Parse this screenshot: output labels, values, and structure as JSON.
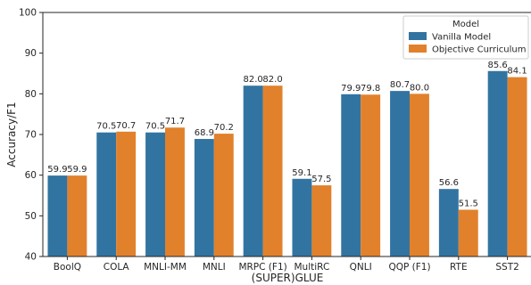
{
  "chart_data": {
    "type": "bar",
    "xlabel": "(SUPER)GLUE",
    "ylabel": "Accuracy/F1",
    "ylim": [
      40,
      100
    ],
    "yticks": [
      40,
      50,
      60,
      70,
      80,
      90,
      100
    ],
    "grid": false,
    "legend": {
      "title": "Model",
      "placement": "top-right"
    },
    "categories": [
      "BoolQ",
      "COLA",
      "MNLI-MM",
      "MNLI",
      "MRPC (F1)",
      "MultiRC",
      "QNLI",
      "QQP (F1)",
      "RTE",
      "SST2"
    ],
    "series": [
      {
        "name": "Vanilla Model",
        "color": "#3274a1",
        "values": [
          59.9,
          70.5,
          70.5,
          68.9,
          82.0,
          59.1,
          79.9,
          80.7,
          56.6,
          85.6
        ],
        "labels": [
          "59.9",
          "70.5",
          "70.5",
          "68.9",
          "82.0",
          "59.1",
          "79.9",
          "80.7",
          "56.6",
          "85.6"
        ]
      },
      {
        "name": "Objective Curriculum",
        "color": "#e1812c",
        "values": [
          59.9,
          70.7,
          71.7,
          70.2,
          82.0,
          57.5,
          79.8,
          80.0,
          51.5,
          84.1
        ],
        "labels": [
          "59.9",
          "70.7",
          "71.7",
          "70.2",
          "82.0",
          "57.5",
          "79.8",
          "80.0",
          "51.5",
          "84.1"
        ]
      }
    ]
  }
}
